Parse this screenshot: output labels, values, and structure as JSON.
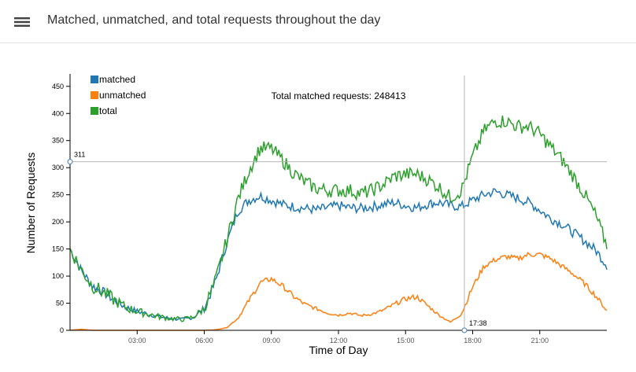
{
  "header": {
    "title": "Matched, unmatched, and total requests throughout the day",
    "menu_icon": "hamburger-menu-icon"
  },
  "colors": {
    "matched": "#1f77b4",
    "unmatched": "#ff7f0e",
    "total": "#2ca02c",
    "axis": "#000000",
    "crosshair": "#b5b5b5",
    "marker": "#4682b4"
  },
  "chart_data": {
    "type": "line",
    "title": "Matched, unmatched, and total requests throughout the day",
    "xlabel": "Time of Day",
    "ylabel": "Number of Requests",
    "xlim_hours": [
      0,
      24
    ],
    "ylim": [
      0,
      470
    ],
    "x_tick_hours": [
      3,
      6,
      9,
      12,
      15,
      18,
      21
    ],
    "x_tick_labels": [
      "03:00",
      "06:00",
      "09:00",
      "12:00",
      "15:00",
      "18:00",
      "21:00"
    ],
    "y_ticks": [
      0,
      50,
      100,
      150,
      200,
      250,
      300,
      350,
      400,
      450
    ],
    "y_tick_labels": [
      "0",
      "50",
      "100",
      "150",
      "200",
      "250",
      "300",
      "350",
      "400",
      "450"
    ],
    "legend": {
      "position": "top-left",
      "entries": [
        "matched",
        "unmatched",
        "total"
      ]
    },
    "annotation": "Total matched requests: 248413",
    "crosshair": {
      "hour": 17.63,
      "time_label": "17:38",
      "value": 311,
      "value_label": "311"
    },
    "x_hours": [
      0,
      0.5,
      1,
      1.5,
      2,
      2.5,
      3,
      3.5,
      4,
      4.5,
      5,
      5.5,
      6,
      6.5,
      7,
      7.5,
      8,
      8.5,
      9,
      9.5,
      10,
      10.5,
      11,
      11.5,
      12,
      12.5,
      13,
      13.5,
      14,
      14.5,
      15,
      15.5,
      16,
      16.5,
      17,
      17.5,
      18,
      18.5,
      19,
      19.5,
      20,
      20.5,
      21,
      21.5,
      22,
      22.5,
      23,
      23.5,
      24
    ],
    "series": [
      {
        "name": "matched",
        "values": [
          150,
          110,
          82,
          70,
          55,
          42,
          35,
          30,
          25,
          22,
          20,
          24,
          40,
          90,
          160,
          220,
          240,
          248,
          240,
          232,
          228,
          225,
          222,
          226,
          230,
          226,
          225,
          228,
          232,
          236,
          230,
          226,
          233,
          236,
          230,
          228,
          240,
          250,
          256,
          250,
          244,
          236,
          222,
          206,
          196,
          180,
          165,
          148,
          120
        ]
      },
      {
        "name": "unmatched",
        "values": [
          0,
          2,
          0,
          0,
          0,
          0,
          0,
          0,
          0,
          0,
          0,
          0,
          0,
          1,
          5,
          22,
          55,
          88,
          95,
          82,
          62,
          48,
          40,
          32,
          28,
          32,
          27,
          30,
          37,
          48,
          58,
          62,
          45,
          28,
          15,
          30,
          80,
          118,
          130,
          136,
          132,
          140,
          140,
          132,
          118,
          104,
          86,
          64,
          36
        ]
      },
      {
        "name": "total",
        "values": [
          150,
          112,
          82,
          70,
          55,
          42,
          35,
          30,
          25,
          22,
          20,
          24,
          40,
          91,
          165,
          242,
          295,
          336,
          335,
          314,
          290,
          273,
          262,
          258,
          258,
          258,
          252,
          258,
          269,
          284,
          288,
          288,
          278,
          264,
          245,
          258,
          320,
          368,
          386,
          386,
          376,
          376,
          362,
          338,
          314,
          284,
          251,
          212,
          156
        ]
      }
    ]
  }
}
